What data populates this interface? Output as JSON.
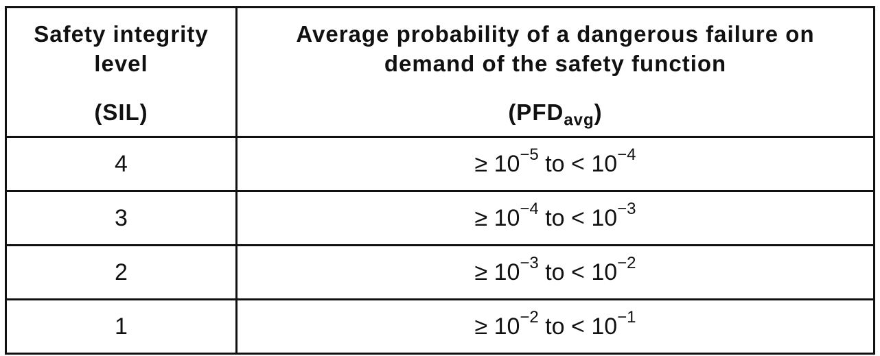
{
  "table": {
    "header": [
      {
        "lines": [
          "Safety integrity",
          "level"
        ],
        "abbr": [
          "(SIL)"
        ]
      },
      {
        "lines": [
          "Average probability of a dangerous failure on",
          "demand of the safety function"
        ],
        "abbr": [
          "(PFD",
          "avg",
          ")"
        ]
      }
    ],
    "rows": [
      [
        "4",
        [
          "≥ 10",
          "−5",
          " to < 10",
          "−4"
        ]
      ],
      [
        "3",
        [
          "≥ 10",
          "−4",
          " to < 10",
          "−3"
        ]
      ],
      [
        "2",
        [
          "≥ 10",
          "−3",
          " to < 10",
          "−2"
        ]
      ],
      [
        "1",
        [
          "≥ 10",
          "−2",
          " to < 10",
          "−1"
        ]
      ]
    ]
  }
}
